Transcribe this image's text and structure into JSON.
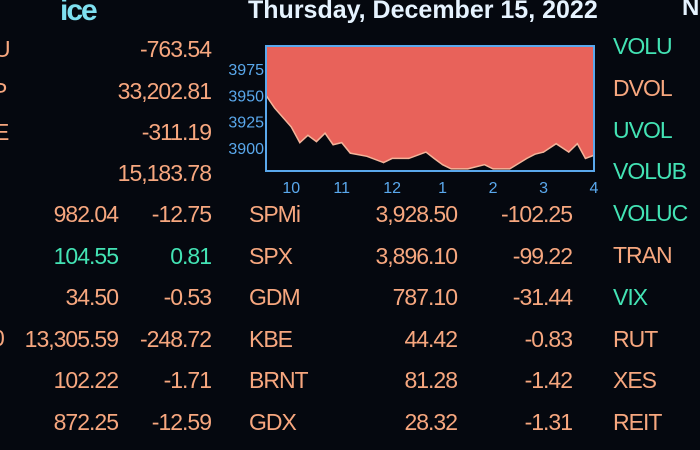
{
  "header": {
    "logo": "ice",
    "date": "Thursday, December 15, 2022",
    "corner_fragment": "N"
  },
  "left_edge_fragments": [
    "U",
    "P",
    "E",
    "0"
  ],
  "top_values": [
    "-763.54",
    "33,202.81",
    "-311.19",
    "15,183.78"
  ],
  "right_labels": [
    {
      "label": "VOLU",
      "color": "green"
    },
    {
      "label": "DVOL",
      "color": "orange"
    },
    {
      "label": "UVOL",
      "color": "green"
    },
    {
      "label": "VOLUB",
      "color": "green"
    },
    {
      "label": "VOLUC",
      "color": "green"
    },
    {
      "label": "TRAN",
      "color": "orange"
    },
    {
      "label": "VIX",
      "color": "green"
    },
    {
      "label": "RUT",
      "color": "orange"
    },
    {
      "label": "XES",
      "color": "orange"
    },
    {
      "label": "REIT",
      "color": "orange"
    }
  ],
  "rows": [
    {
      "last": "982.04",
      "change": "-12.75",
      "symbol": "SPMi",
      "value": "3,928.50",
      "value_change": "-102.25",
      "left_up": false
    },
    {
      "last": "104.55",
      "change": "0.81",
      "symbol": "SPX",
      "value": "3,896.10",
      "value_change": "-99.22",
      "left_up": true
    },
    {
      "last": "34.50",
      "change": "-0.53",
      "symbol": "GDM",
      "value": "787.10",
      "value_change": "-31.44",
      "left_up": false
    },
    {
      "last": "13,305.59",
      "change": "-248.72",
      "symbol": "KBE",
      "value": "44.42",
      "value_change": "-0.83",
      "left_up": false
    },
    {
      "last": "102.22",
      "change": "-1.71",
      "symbol": "BRNT",
      "value": "81.28",
      "value_change": "-1.42",
      "left_up": false
    },
    {
      "last": "872.25",
      "change": "-12.59",
      "symbol": "GDX",
      "value": "28.32",
      "value_change": "-1.31",
      "left_up": false
    }
  ],
  "colors": {
    "orange": "#f7a77f",
    "green": "#43e3b4",
    "axis": "#5aa8ec",
    "fill": "#e8625a",
    "frame": "#5aa8ec"
  },
  "chart_data": {
    "type": "area",
    "x_ticks": [
      "10",
      "11",
      "12",
      "1",
      "2",
      "3",
      "4"
    ],
    "y_ticks": [
      3900,
      3925,
      3950,
      3975
    ],
    "ylim": [
      3878,
      3997
    ],
    "x_hours": [
      9.5,
      9.67,
      10,
      10.17,
      10.33,
      10.5,
      10.67,
      10.83,
      11,
      11.17,
      11.5,
      11.83,
      12,
      12.33,
      12.67,
      12.83,
      13,
      13.17,
      13.5,
      13.83,
      14,
      14.33,
      14.67,
      14.83,
      15,
      15.25,
      15.5,
      15.67,
      15.83,
      16
    ],
    "values": [
      3950,
      3938,
      3920,
      3905,
      3912,
      3906,
      3914,
      3903,
      3905,
      3895,
      3892,
      3886,
      3890,
      3890,
      3896,
      3890,
      3884,
      3880,
      3880,
      3884,
      3880,
      3880,
      3890,
      3894,
      3896,
      3904,
      3896,
      3904,
      3890,
      3893
    ]
  }
}
